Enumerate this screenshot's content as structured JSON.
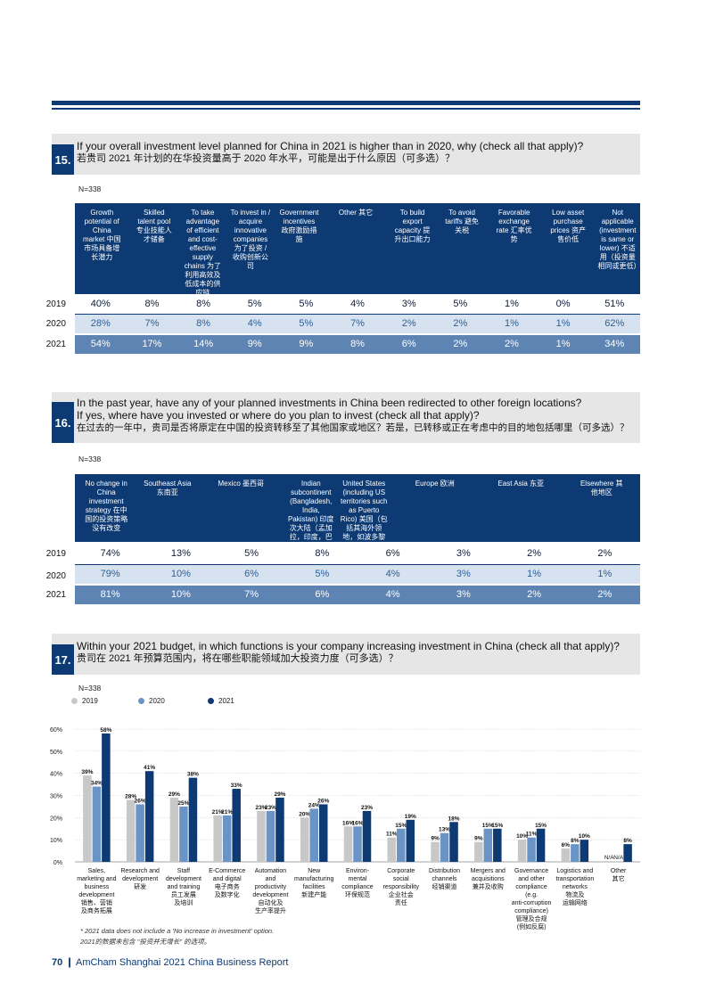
{
  "q15": {
    "num": "15.",
    "title_en": "If your overall investment level planned for China in 2021 is higher than in 2020, why (check all that apply)?",
    "title_cn": "若贵司 2021 年计划的在华投资量高于 2020 年水平，可能是出于什么原因（可多选）？",
    "n": "N=338",
    "headers": [
      "Growth potential of China market 中国市场具备增长潜力",
      "Skilled talent pool 专业技能人才储备",
      "To take advantage of efficient and cost-effective supply chains 为了利用高效及低成本的供应链",
      "To invest in / acquire innovative companies 为了投资 / 收购创新公司",
      "Government incentives 政府激励措施",
      "Other 其它",
      "To build export capacity 提升出口能力",
      "To avoid tariffs 避免关税",
      "Favorable exchange rate 汇率优势",
      "Low asset purchase prices 资产售价低",
      "Not applicable (investment is same or lower) 不适用（投资量相同或更低）"
    ],
    "rows": [
      {
        "year": "2019",
        "values": [
          "40%",
          "8%",
          "8%",
          "5%",
          "5%",
          "4%",
          "3%",
          "5%",
          "1%",
          "0%",
          "51%"
        ]
      },
      {
        "year": "2020",
        "values": [
          "28%",
          "7%",
          "8%",
          "4%",
          "5%",
          "7%",
          "2%",
          "2%",
          "1%",
          "1%",
          "62%"
        ]
      },
      {
        "year": "2021",
        "values": [
          "54%",
          "17%",
          "14%",
          "9%",
          "9%",
          "8%",
          "6%",
          "2%",
          "2%",
          "1%",
          "34%"
        ]
      }
    ]
  },
  "q16": {
    "num": "16.",
    "title_en1": "In the past year, have any of your planned investments in China been redirected to other foreign locations?",
    "title_en2": "If yes, where have you invested or where do you plan to invest (check all that apply)?",
    "title_cn": "在过去的一年中，贵司是否将原定在中国的投资转移至了其他国家或地区？若是，已转移或正在考虑中的目的地包括哪里（可多选）？",
    "n": "N=338",
    "headers": [
      "No change in China investment strategy 在中国的投资策略没有改变",
      "Southeast Asia 东南亚",
      "Mexico 墨西哥",
      "Indian subcontinent (Bangladesh, India, Pakistan) 印度次大陆（孟加拉，印度，巴基斯坦）",
      "United States (including US territories such as Puerto Rico) 美国（包括其海外领地，如波多黎各）",
      "Europe 欧洲",
      "East Asia 东亚",
      "Elsewhere 其他地区"
    ],
    "rows": [
      {
        "year": "2019",
        "values": [
          "74%",
          "13%",
          "5%",
          "8%",
          "6%",
          "3%",
          "2%",
          "2%"
        ]
      },
      {
        "year": "2020",
        "values": [
          "79%",
          "10%",
          "6%",
          "5%",
          "4%",
          "3%",
          "1%",
          "1%"
        ]
      },
      {
        "year": "2021",
        "values": [
          "81%",
          "10%",
          "7%",
          "6%",
          "4%",
          "3%",
          "2%",
          "2%"
        ]
      }
    ]
  },
  "q17": {
    "num": "17.",
    "title_en": "Within your 2021 budget, in which functions is your company increasing investment in China (check all that apply)?",
    "title_cn": "贵司在 2021 年预算范围内，将在哪些职能领域加大投资力度（可多选）？",
    "n": "N=338",
    "footnote_en": "* 2021 data does not include a 'No increase in investment' option.",
    "footnote_cn": "2021的数据未包含 \"投资并无增长\" 的选项。"
  },
  "chart_data": {
    "type": "bar",
    "title": "",
    "ylim": [
      0,
      60
    ],
    "yticks": [
      "0%",
      "10%",
      "20%",
      "30%",
      "40%",
      "50%",
      "60%"
    ],
    "legend": [
      "2019",
      "2020",
      "2021"
    ],
    "colors": [
      "#c8c8c8",
      "#6a93c6",
      "#0d3a73"
    ],
    "categories": [
      [
        "Sales,",
        "marketing and",
        "business",
        "development",
        "销售、营销",
        "及商务拓展"
      ],
      [
        "Research and",
        "development",
        "研发"
      ],
      [
        "Staff",
        "development",
        "and training",
        "员工发展",
        "及培训"
      ],
      [
        "E-Commerce",
        "and digital",
        "电子商务",
        "及数字化"
      ],
      [
        "Automation",
        "and",
        "productivity",
        "development",
        "自动化及",
        "生产率提升"
      ],
      [
        "New",
        "manufacturing",
        "facilities",
        "新建产能"
      ],
      [
        "Environ-",
        "mental",
        "compliance",
        "环保规范"
      ],
      [
        "Corporate",
        "social",
        "responsibility",
        "企业社会",
        "责任"
      ],
      [
        "Distribution",
        "channels",
        "经销渠道"
      ],
      [
        "Mergers and",
        "acquisitions",
        "兼并及收购"
      ],
      [
        "Governance",
        "and other",
        "compliance",
        "(e.g.",
        "anti-corruption",
        "compliance)",
        "管理及合规",
        "(例如反腐)"
      ],
      [
        "Logistics and",
        "transportation",
        "networks",
        "物流及",
        "运输网络"
      ],
      [
        "Other",
        "其它"
      ]
    ],
    "series": [
      {
        "name": "2019",
        "values": [
          39,
          28,
          29,
          21,
          23,
          20,
          16,
          11,
          9,
          9,
          10,
          6,
          null
        ]
      },
      {
        "name": "2020",
        "values": [
          34,
          26,
          25,
          21,
          23,
          24,
          16,
          15,
          13,
          15,
          11,
          8,
          null
        ]
      },
      {
        "name": "2021",
        "values": [
          58,
          41,
          38,
          33,
          29,
          26,
          23,
          19,
          18,
          15,
          15,
          10,
          8
        ]
      }
    ],
    "na_label": "N/A",
    "value_suffix": "%"
  },
  "footer": {
    "page": "70",
    "text": "AmCham Shanghai 2021 China Business Report"
  }
}
